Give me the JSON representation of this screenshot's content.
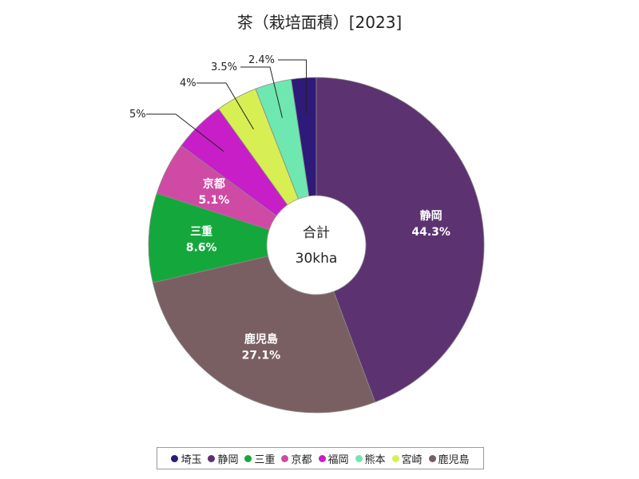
{
  "chart_data": {
    "type": "pie",
    "title": "茶（栽培面積）[2023]",
    "center_label": "合計",
    "center_value": "30kha",
    "slices": [
      {
        "name": "埼玉",
        "value": 2.4,
        "pct_label": "2.4%",
        "color": "#2e1a78"
      },
      {
        "name": "静岡",
        "value": 44.3,
        "pct_label": "44.3%",
        "color": "#5c3370"
      },
      {
        "name": "鹿児島",
        "value": 27.1,
        "pct_label": "27.1%",
        "color": "#7a5f62"
      },
      {
        "name": "三重",
        "value": 8.6,
        "pct_label": "8.6%",
        "color": "#14a83c"
      },
      {
        "name": "京都",
        "value": 5.1,
        "pct_label": "5.1%",
        "color": "#cf4aa4"
      },
      {
        "name": "福岡",
        "value": 5.0,
        "pct_label": "5%",
        "color": "#c81ec8"
      },
      {
        "name": "宮崎",
        "value": 4.0,
        "pct_label": "4%",
        "color": "#d7ef52"
      },
      {
        "name": "熊本",
        "value": 3.5,
        "pct_label": "3.5%",
        "color": "#6ee8b0"
      }
    ],
    "legend": [
      {
        "name": "埼玉",
        "color": "#2e1a78"
      },
      {
        "name": "静岡",
        "color": "#5c3370"
      },
      {
        "name": "三重",
        "color": "#14a83c"
      },
      {
        "name": "京都",
        "color": "#cf4aa4"
      },
      {
        "name": "福岡",
        "color": "#c81ec8"
      },
      {
        "name": "熊本",
        "color": "#6ee8b0"
      },
      {
        "name": "宮崎",
        "color": "#d7ef52"
      },
      {
        "name": "鹿児島",
        "color": "#7a5f62"
      }
    ],
    "legend_position": "bottom"
  }
}
